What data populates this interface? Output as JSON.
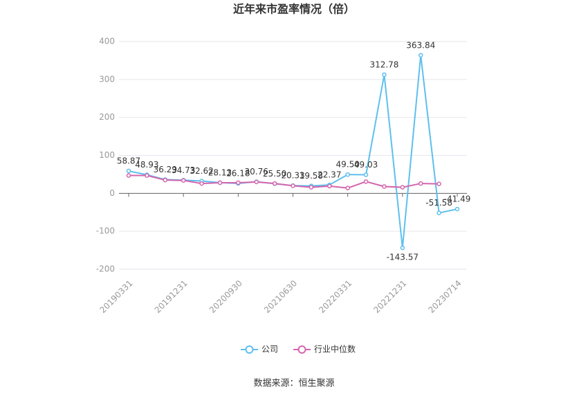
{
  "chart_data": {
    "type": "line",
    "title": "近年来市盈率情况（倍）",
    "source": "数据来源：恒生聚源",
    "categories": [
      "20190331",
      null,
      null,
      "20191231",
      null,
      null,
      "20200930",
      null,
      null,
      "20210630",
      null,
      null,
      "20220331",
      null,
      null,
      "20221231",
      null,
      null,
      "20230714"
    ],
    "series": [
      {
        "name": "公司",
        "color": "#5dbfee",
        "values": [
          58.87,
          48.93,
          36.29,
          34.73,
          32.62,
          28.13,
          26.18,
          30.76,
          25.5,
          20.33,
          19.58,
          22.37,
          49.5,
          49.03,
          312.78,
          -143.57,
          363.84,
          -51.58,
          -41.49
        ],
        "value_labels": [
          "58.87",
          "48.93",
          "36.29",
          "34.73",
          "32.62",
          "28.13",
          "26.18",
          "30.76",
          "25.50",
          "20.33",
          "19.58",
          "22.37",
          "49.50",
          "49.03",
          "312.78",
          "-143.57",
          "363.84",
          "-51.58",
          "-41.49"
        ]
      },
      {
        "name": "行业中位数",
        "color": "#d465ad",
        "values": [
          47,
          47,
          35,
          34,
          26,
          28,
          28,
          30,
          26,
          20,
          16,
          19,
          14,
          31,
          18,
          16,
          26,
          25,
          null
        ]
      }
    ],
    "ylim": [
      -200,
      400
    ],
    "yticks": [
      -200,
      -100,
      0,
      100,
      200,
      300,
      400
    ],
    "grid": true,
    "legend": "bottom"
  }
}
